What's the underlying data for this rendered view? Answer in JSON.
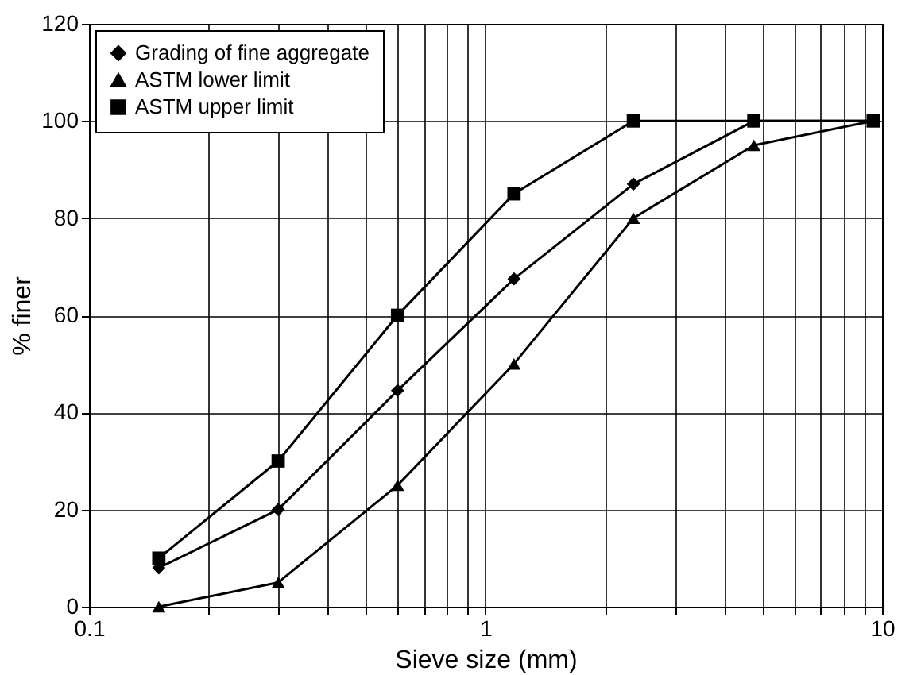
{
  "chart_data": {
    "type": "line",
    "xlabel": "Sieve size (mm)",
    "ylabel": "% finer",
    "log": "x",
    "grid": true,
    "legend": "top left",
    "xlim": [
      0.1,
      10
    ],
    "ylim": [
      0,
      120
    ],
    "yticks": [
      0,
      20,
      40,
      60,
      80,
      100,
      120
    ],
    "xticks": [
      {
        "value": 0.1,
        "label": "0.1"
      },
      {
        "value": 0.2,
        "label": null
      },
      {
        "value": 0.3,
        "label": null
      },
      {
        "value": 0.4,
        "label": null
      },
      {
        "value": 0.5,
        "label": null
      },
      {
        "value": 0.6,
        "label": null
      },
      {
        "value": 0.7,
        "label": null
      },
      {
        "value": 0.8,
        "label": null
      },
      {
        "value": 0.9,
        "label": null
      },
      1,
      {
        "value": 2,
        "label": null
      },
      {
        "value": 3,
        "label": null
      },
      {
        "value": 4,
        "label": null
      },
      {
        "value": 5,
        "label": null
      },
      {
        "value": 6,
        "label": null
      },
      {
        "value": 7,
        "label": null
      },
      {
        "value": 8,
        "label": null
      },
      {
        "value": 9,
        "label": null
      },
      10
    ],
    "x": [
      0.15,
      0.3,
      0.6,
      1.18,
      2.36,
      4.75,
      9.5
    ],
    "series": [
      {
        "name": "Grading of fine aggregate",
        "color": "#000000",
        "marker": "diamond",
        "values": [
          8,
          20,
          44.5,
          67.5,
          87,
          100,
          100
        ]
      },
      {
        "name": "ASTM lower limit",
        "color": "#000000",
        "marker": "triangle",
        "values": [
          0,
          5,
          25,
          50,
          80,
          95,
          100
        ]
      },
      {
        "name": "ASTM upper limit",
        "color": "#000000",
        "marker": "square",
        "values": [
          10,
          30,
          60,
          85,
          100,
          100,
          100
        ]
      }
    ]
  }
}
